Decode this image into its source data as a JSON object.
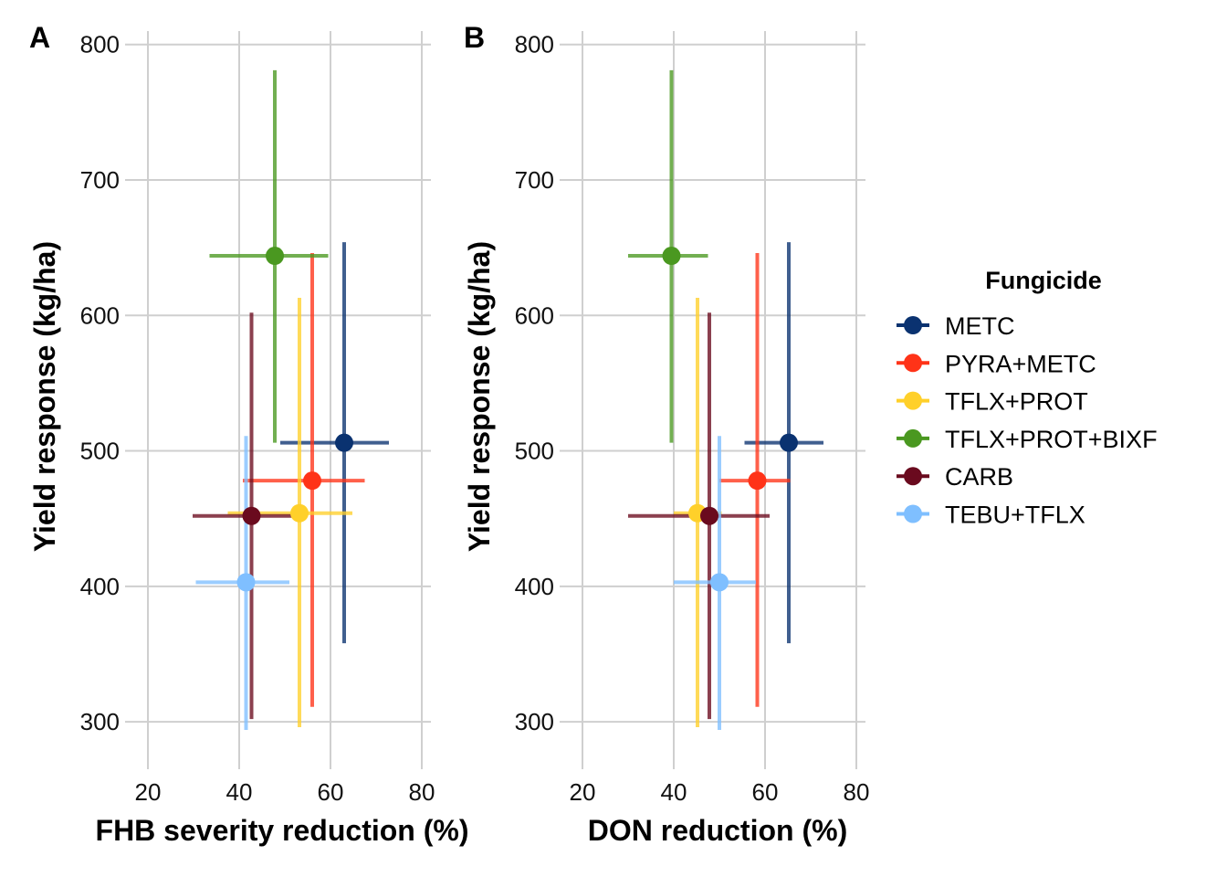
{
  "legend": {
    "title": "Fungicide",
    "entries": [
      {
        "label": "METC",
        "color": "#0a3270"
      },
      {
        "label": "PYRA+METC",
        "color": "#ff3318"
      },
      {
        "label": "TFLX+PROT",
        "color": "#ffd02a"
      },
      {
        "label": "TFLX+PROT+BIXF",
        "color": "#4a9820"
      },
      {
        "label": "CARB",
        "color": "#6a0a1e"
      },
      {
        "label": "TEBU+TFLX",
        "color": "#7fbfff"
      }
    ]
  },
  "chart_data": [
    {
      "type": "scatter",
      "panel_label": "A",
      "xlabel": "FHB severity reduction (%)",
      "ylabel": "Yield response (kg/ha)",
      "xlim": [
        15,
        82
      ],
      "ylim": [
        265,
        818
      ],
      "xticks": [
        "20",
        "40",
        "60",
        "80"
      ],
      "yticks": [
        "300",
        "400",
        "500",
        "600",
        "700",
        "800"
      ],
      "grid": true,
      "points": [
        {
          "name": "METC",
          "x": 63.0,
          "x_lo": 49.0,
          "x_hi": 72.8,
          "y": 506,
          "y_lo": 358,
          "y_hi": 654
        },
        {
          "name": "PYRA+METC",
          "x": 56.0,
          "x_lo": 40.8,
          "x_hi": 67.5,
          "y": 478,
          "y_lo": 311,
          "y_hi": 646
        },
        {
          "name": "TFLX+PROT",
          "x": 53.2,
          "x_lo": 37.5,
          "x_hi": 64.8,
          "y": 454,
          "y_lo": 296,
          "y_hi": 613
        },
        {
          "name": "TFLX+PROT+BIXF",
          "x": 47.8,
          "x_lo": 33.5,
          "x_hi": 59.5,
          "y": 644,
          "y_lo": 506,
          "y_hi": 781
        },
        {
          "name": "CARB",
          "x": 42.7,
          "x_lo": 29.8,
          "x_hi": 54.0,
          "y": 452,
          "y_lo": 302,
          "y_hi": 602
        },
        {
          "name": "TEBU+TFLX",
          "x": 41.5,
          "x_lo": 30.5,
          "x_hi": 51.0,
          "y": 403,
          "y_lo": 294,
          "y_hi": 511
        }
      ]
    },
    {
      "type": "scatter",
      "panel_label": "B",
      "xlabel": "DON reduction (%)",
      "ylabel": "Yield response (kg/ha)",
      "xlim": [
        15,
        82
      ],
      "ylim": [
        265,
        818
      ],
      "xticks": [
        "20",
        "40",
        "60",
        "80"
      ],
      "yticks": [
        "300",
        "400",
        "500",
        "600",
        "700",
        "800"
      ],
      "grid": true,
      "points": [
        {
          "name": "METC",
          "x": 65.2,
          "x_lo": 55.5,
          "x_hi": 72.8,
          "y": 506,
          "y_lo": 358,
          "y_hi": 654
        },
        {
          "name": "PYRA+METC",
          "x": 58.3,
          "x_lo": 50.0,
          "x_hi": 65.5,
          "y": 478,
          "y_lo": 311,
          "y_hi": 646
        },
        {
          "name": "TFLX+PROT",
          "x": 45.2,
          "x_lo": 40.0,
          "x_hi": 50.5,
          "y": 454,
          "y_lo": 296,
          "y_hi": 613
        },
        {
          "name": "TFLX+PROT+BIXF",
          "x": 39.5,
          "x_lo": 30.0,
          "x_hi": 47.5,
          "y": 644,
          "y_lo": 506,
          "y_hi": 781
        },
        {
          "name": "CARB",
          "x": 47.8,
          "x_lo": 30.0,
          "x_hi": 61.0,
          "y": 452,
          "y_lo": 302,
          "y_hi": 602
        },
        {
          "name": "TEBU+TFLX",
          "x": 50.0,
          "x_lo": 40.0,
          "x_hi": 58.0,
          "y": 403,
          "y_lo": 294,
          "y_hi": 511
        }
      ]
    }
  ]
}
